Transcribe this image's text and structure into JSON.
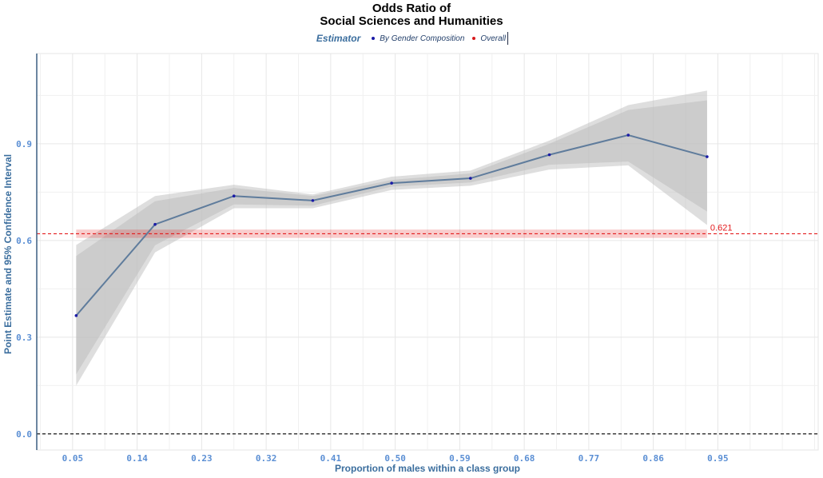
{
  "chart_data": {
    "type": "line",
    "title_lines": [
      "Odds Ratio of",
      "Social Sciences and Humanities"
    ],
    "xlabel": "Proportion of males within a class group",
    "ylabel": "Point Estimate and 95% Confidence Interval",
    "xlim": [
      0.0,
      1.09
    ],
    "ylim": [
      -0.05,
      1.18
    ],
    "x_ticks": [
      0.05,
      0.14,
      0.23,
      0.32,
      0.41,
      0.5,
      0.59,
      0.68,
      0.77,
      0.86,
      0.95
    ],
    "x_tick_labels": [
      "0.05",
      "0.14",
      "0.23",
      "0.32",
      "0.41",
      "0.50",
      "0.59",
      "0.68",
      "0.77",
      "0.86",
      "0.95"
    ],
    "y_ticks": [
      0.0,
      0.3,
      0.6,
      0.9
    ],
    "y_tick_labels": [
      "0.0",
      "0.3",
      "0.6",
      "0.9"
    ],
    "legend": {
      "title": "Estimator",
      "position": "top",
      "items": [
        {
          "label": "By Gender Composition",
          "color": "#1a1aa6"
        },
        {
          "label": "Overall",
          "color": "#d7191c"
        }
      ]
    },
    "series": [
      {
        "name": "By Gender Composition",
        "color": "#5f7c9c",
        "point_color": "#1a1aa6",
        "x": [
          0.055,
          0.165,
          0.275,
          0.385,
          0.495,
          0.605,
          0.715,
          0.825,
          0.935
        ],
        "y": [
          0.367,
          0.65,
          0.738,
          0.724,
          0.778,
          0.793,
          0.866,
          0.927,
          0.86
        ],
        "ci_outer_low": [
          0.15,
          0.563,
          0.7,
          0.7,
          0.757,
          0.77,
          0.82,
          0.833,
          0.648
        ],
        "ci_outer_high": [
          0.586,
          0.738,
          0.773,
          0.743,
          0.798,
          0.817,
          0.91,
          1.02,
          1.065
        ],
        "ci_inner_low": [
          0.185,
          0.585,
          0.712,
          0.708,
          0.767,
          0.78,
          0.835,
          0.845,
          0.69
        ],
        "ci_inner_high": [
          0.552,
          0.722,
          0.763,
          0.738,
          0.788,
          0.808,
          0.9,
          1.005,
          1.035
        ]
      }
    ],
    "overall": {
      "value": 0.621,
      "label": "0.621",
      "color": "#e31a1c",
      "band_low": 0.608,
      "band_high": 0.634,
      "band_x": [
        0.055,
        0.935
      ]
    },
    "reference_line": {
      "y": 0.0,
      "color": "#000000"
    },
    "grid": true,
    "colors": {
      "ci_band": "#bdbdbd",
      "axis_text": "#5b8fd4",
      "axis_title": "#3b6e9e"
    }
  }
}
